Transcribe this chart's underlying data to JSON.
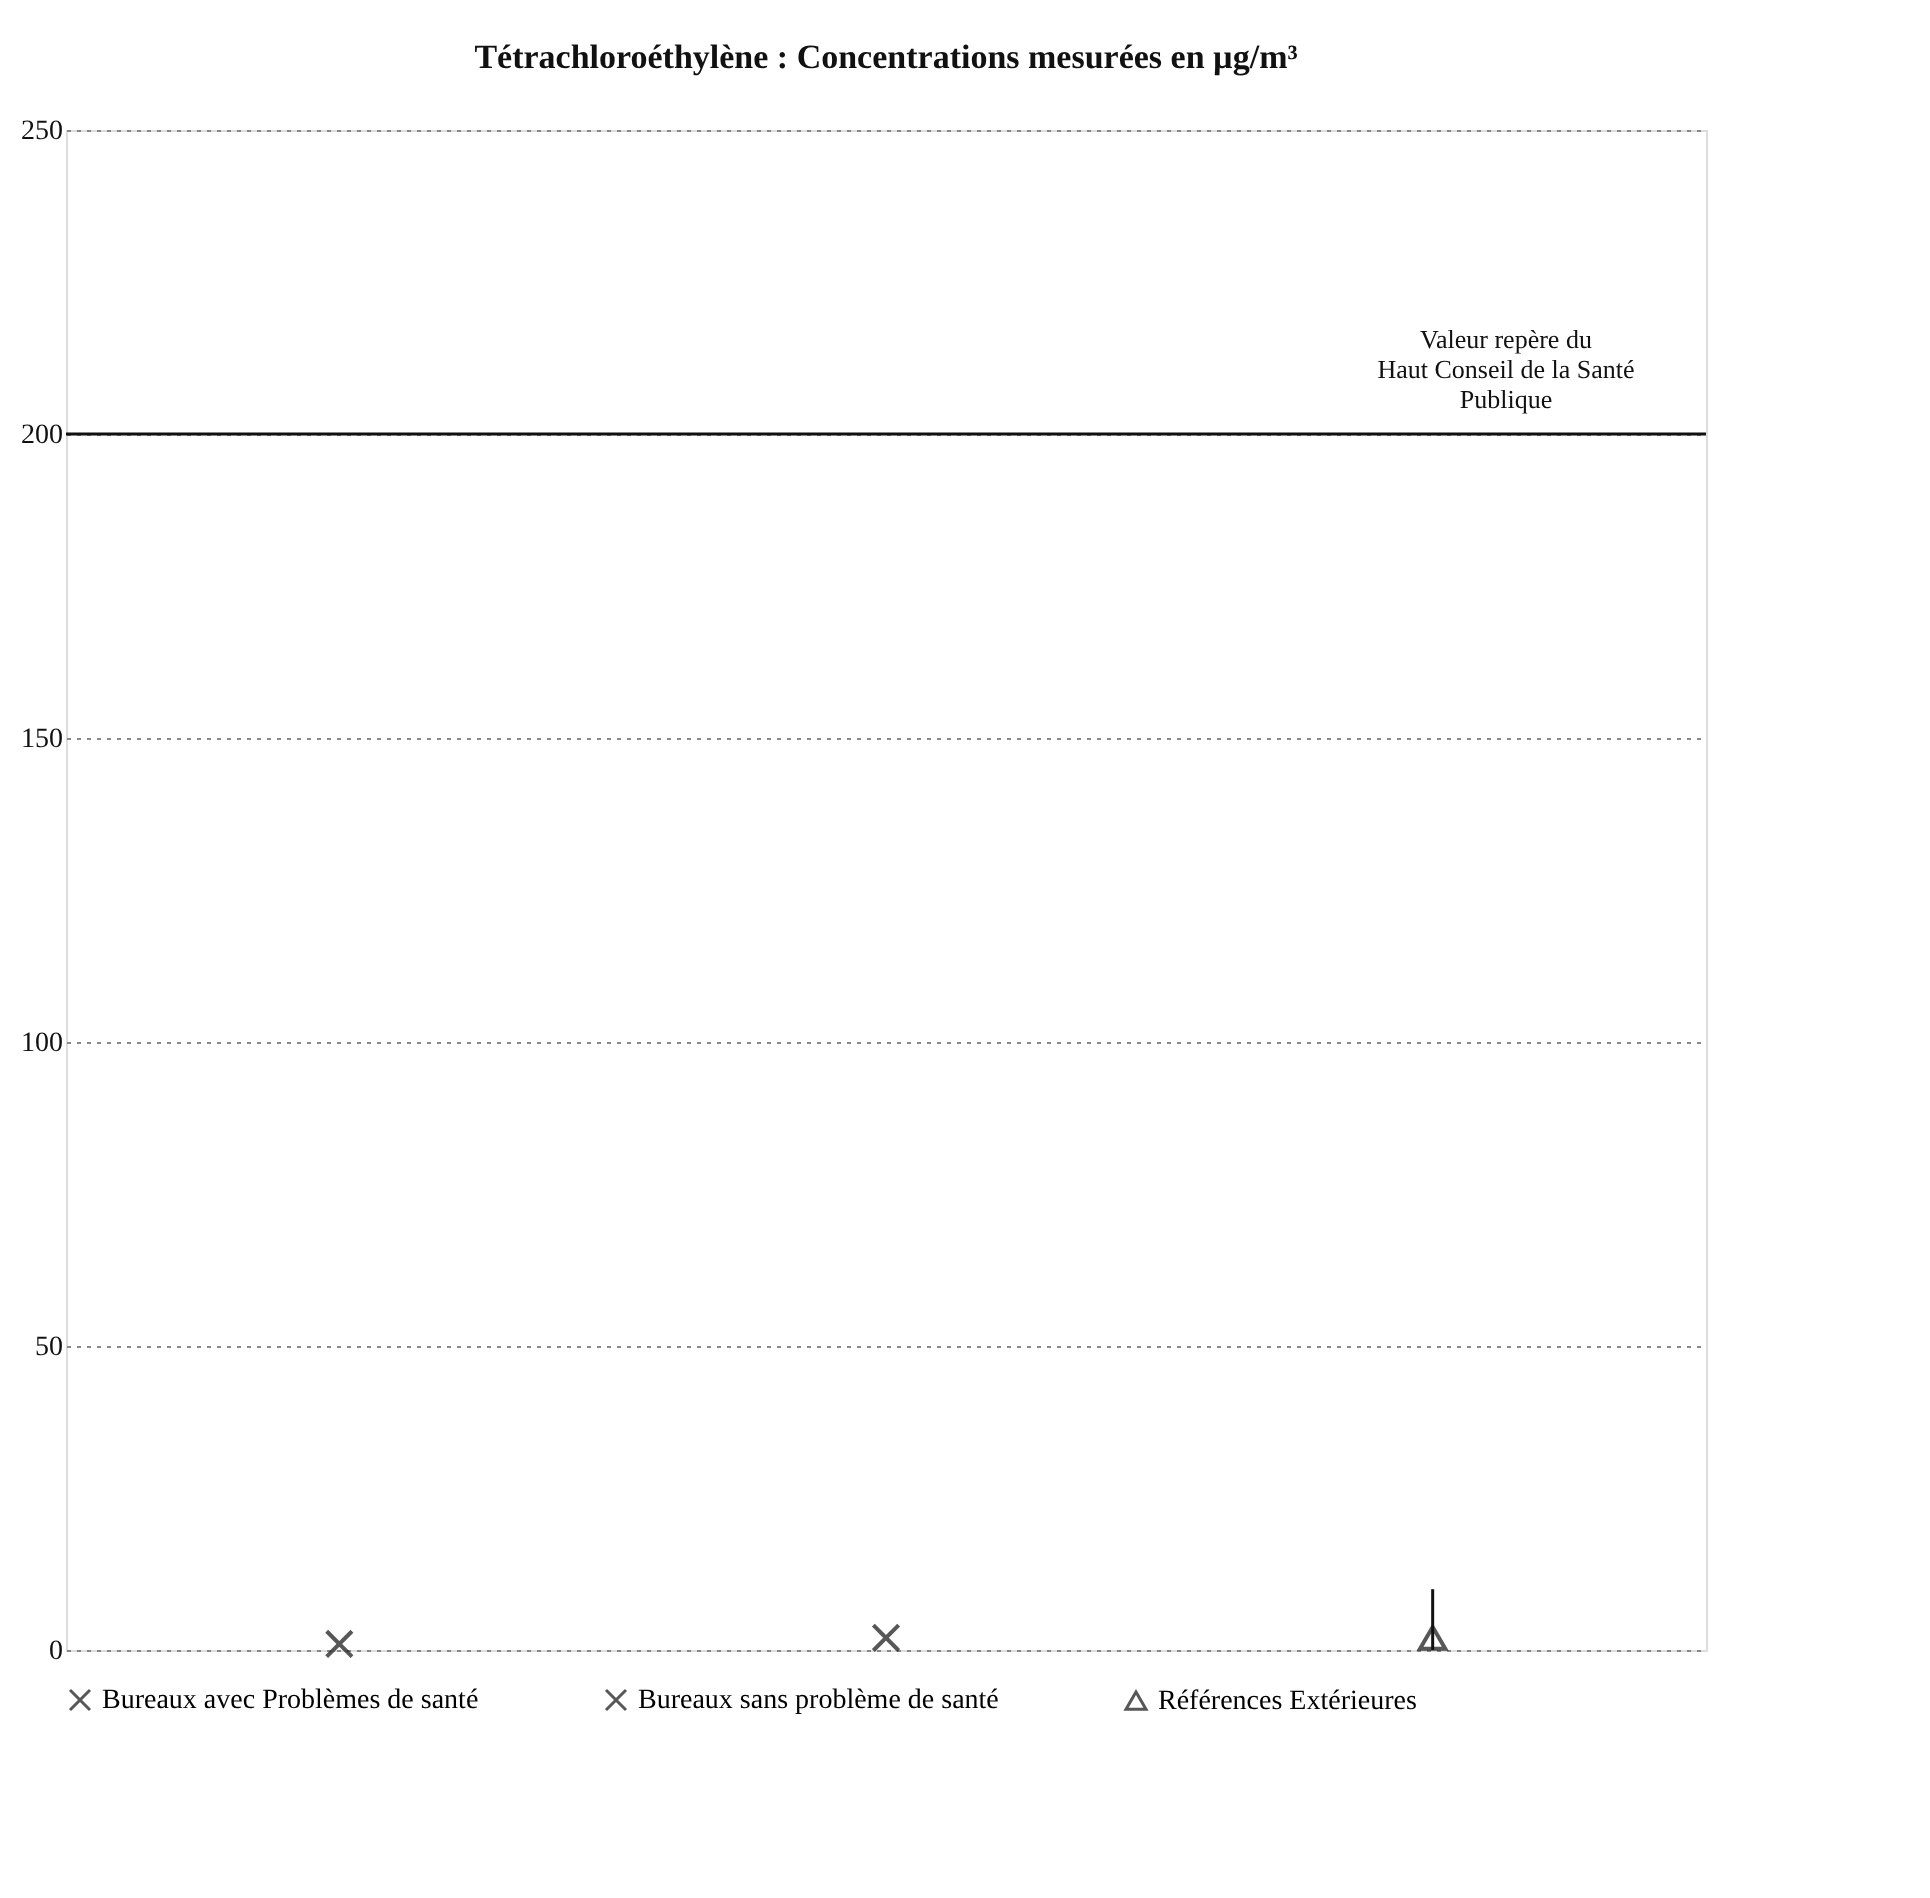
{
  "chart_data": {
    "type": "scatter",
    "title": "Tétrachloroéthylène  : Concentrations mesurées en µg/m³",
    "categories": [
      null,
      null,
      null
    ],
    "series": [
      {
        "name": "Bureaux avec Problèmes de santé",
        "color": "#111111",
        "marker": "cross",
        "values": [
          1,
          null,
          null
        ]
      },
      {
        "name": "Bureaux sans problème de santé",
        "color": "#111111",
        "marker": "cross",
        "values": [
          null,
          2,
          null
        ]
      },
      {
        "name": "Références Extérieures",
        "color": "#111111",
        "marker": "triangle",
        "values": [
          null,
          null,
          2
        ],
        "errors": [
          null,
          null,
          [
            0,
            10
          ]
        ]
      }
    ],
    "ylim": [
      0,
      250
    ],
    "yticks": [
      0,
      50,
      100,
      150,
      200,
      250
    ],
    "grid": "y",
    "legend": "bottom",
    "tick_labels": "y",
    "ref_lines": [
      {
        "axis": "y",
        "value": 200,
        "label": "Valeur repère du Haut Conseil de la Santé Publique",
        "color": "#111111"
      }
    ]
  }
}
